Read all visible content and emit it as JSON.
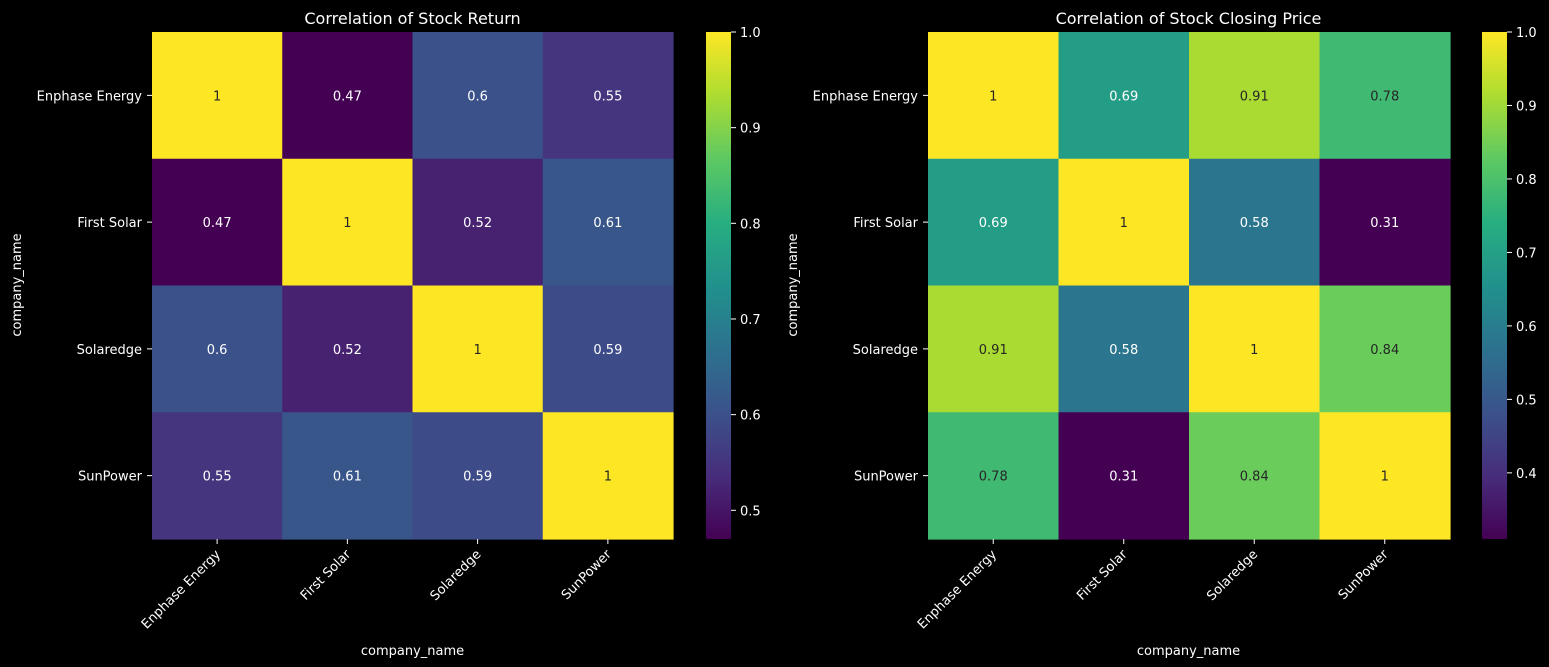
{
  "chart_data": [
    {
      "type": "heatmap",
      "title": "Correlation of Stock Return",
      "xlabel": "company_name",
      "ylabel": "company_name",
      "x_categories": [
        "Enphase Energy",
        "First Solar",
        "Solaredge",
        "SunPower"
      ],
      "y_categories": [
        "Enphase Energy",
        "First Solar",
        "Solaredge",
        "SunPower"
      ],
      "values": [
        [
          1,
          0.47,
          0.6,
          0.55
        ],
        [
          0.47,
          1,
          0.52,
          0.61
        ],
        [
          0.6,
          0.52,
          1,
          0.59
        ],
        [
          0.55,
          0.61,
          0.59,
          1
        ]
      ],
      "labels": [
        [
          "1",
          "0.47",
          "0.6",
          "0.55"
        ],
        [
          "0.47",
          "1",
          "0.52",
          "0.61"
        ],
        [
          "0.6",
          "0.52",
          "1",
          "0.59"
        ],
        [
          "0.55",
          "0.61",
          "0.59",
          "1"
        ]
      ],
      "colormap": "viridis",
      "colorbar_range": [
        0.47,
        1
      ],
      "colorbar_ticks": [
        0.5,
        0.6,
        0.7,
        0.8,
        0.9,
        1.0
      ],
      "colorbar_tick_labels": [
        "0.5",
        "0.6",
        "0.7",
        "0.8",
        "0.9",
        "1.0"
      ]
    },
    {
      "type": "heatmap",
      "title": "Correlation of Stock Closing Price",
      "xlabel": "company_name",
      "ylabel": "company_name",
      "x_categories": [
        "Enphase Energy",
        "First Solar",
        "Solaredge",
        "SunPower"
      ],
      "y_categories": [
        "Enphase Energy",
        "First Solar",
        "Solaredge",
        "SunPower"
      ],
      "values": [
        [
          1,
          0.69,
          0.91,
          0.78
        ],
        [
          0.69,
          1,
          0.58,
          0.31
        ],
        [
          0.91,
          0.58,
          1,
          0.84
        ],
        [
          0.78,
          0.31,
          0.84,
          1
        ]
      ],
      "labels": [
        [
          "1",
          "0.69",
          "0.91",
          "0.78"
        ],
        [
          "0.69",
          "1",
          "0.58",
          "0.31"
        ],
        [
          "0.91",
          "0.58",
          "1",
          "0.84"
        ],
        [
          "0.78",
          "0.31",
          "0.84",
          "1"
        ]
      ],
      "colormap": "viridis",
      "colorbar_range": [
        0.31,
        1
      ],
      "colorbar_ticks": [
        0.4,
        0.5,
        0.6,
        0.7,
        0.8,
        0.9,
        1.0
      ],
      "colorbar_tick_labels": [
        "0.4",
        "0.5",
        "0.6",
        "0.7",
        "0.8",
        "0.9",
        "1.0"
      ]
    }
  ]
}
